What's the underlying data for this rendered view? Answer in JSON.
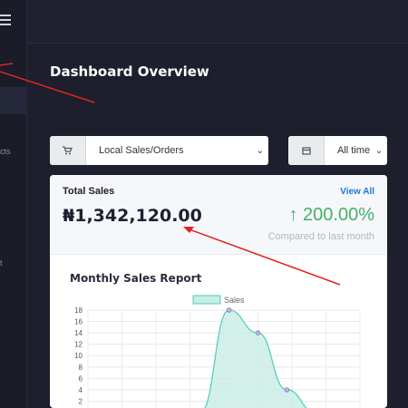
{
  "sidebar": {
    "items": [
      {
        "label": "cts"
      },
      {
        "label": "t"
      }
    ]
  },
  "page": {
    "title": "Dashboard Overview"
  },
  "filters": {
    "sales_type": {
      "selected": "Local Sales/Orders",
      "icon": "cart-icon"
    },
    "period": {
      "selected": "All time",
      "icon": "calendar-icon"
    }
  },
  "total_sales": {
    "label": "Total Sales",
    "view_all": "View All",
    "value": "₦1,342,120.00",
    "change": "200.00%",
    "change_arrow": "↑",
    "comparison": "Compared to last month",
    "change_color": "#45b06a"
  },
  "report": {
    "title": "Monthly Sales Report"
  },
  "chart_data": {
    "type": "area",
    "series": [
      {
        "name": "Sales",
        "points": [
          [
            0,
            0
          ],
          [
            1,
            18
          ],
          [
            2,
            14
          ],
          [
            3,
            4
          ],
          [
            4,
            0
          ]
        ]
      }
    ],
    "y_ticks": [
      "18",
      "16",
      "14",
      "12",
      "10",
      "8",
      "6",
      "4",
      "2"
    ],
    "ylim": [
      0,
      18
    ],
    "grid": true,
    "legend": "top",
    "fill_color": "#c8ece6",
    "line_color": "#4ccdb8"
  }
}
